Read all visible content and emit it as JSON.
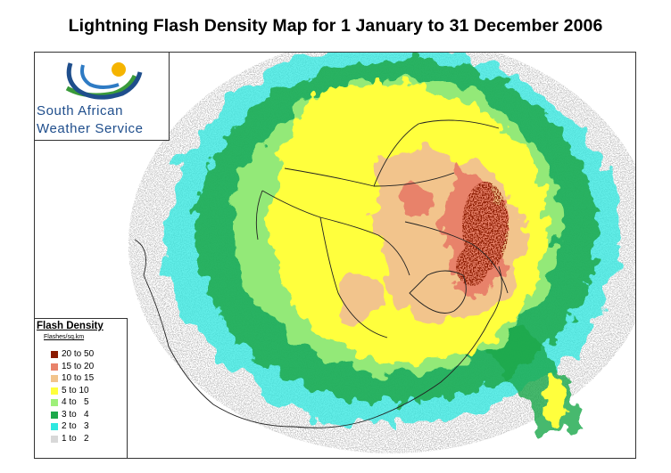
{
  "title": "Lightning Flash Density Map for 1 January to 31 December 2006",
  "logo": {
    "line1": "South African",
    "line2": "Weather Service",
    "colors": {
      "sun": "#f5b400",
      "green": "#3a9b3a",
      "blue": "#1f4e8c"
    }
  },
  "legend": {
    "title": "Flash Density",
    "subtitle": "Flashes/sq.km",
    "classes": [
      {
        "label": "20 to 50",
        "color": "#8b1a00"
      },
      {
        "label": "15 to 20",
        "color": "#e8826a"
      },
      {
        "label": "10 to 15",
        "color": "#f2c48c"
      },
      {
        "label": "5 to 10",
        "color": "#ffff3c"
      },
      {
        "label": "4 to   5",
        "color": "#9ef07a"
      },
      {
        "label": "3 to   4",
        "color": "#1ca84a"
      },
      {
        "label": "2 to   3",
        "color": "#2ee8e0"
      },
      {
        "label": "1 to   2",
        "color": "#d8d8d8"
      }
    ]
  },
  "map": {
    "background": "#ffffff",
    "border_color": "#333333"
  }
}
